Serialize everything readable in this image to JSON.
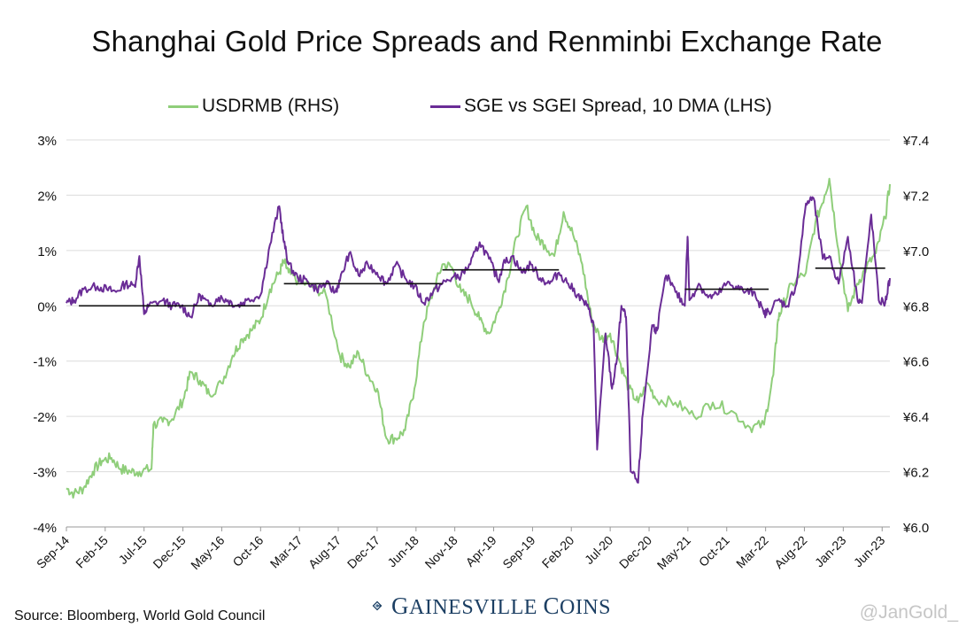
{
  "chart_data": {
    "type": "line",
    "title": "Shanghai Gold Price Spreads and Renminbi Exchange Rate",
    "legend_position": "top-center",
    "left_axis": {
      "ylim": [
        -0.04,
        0.03
      ],
      "ticks": [
        -0.04,
        -0.03,
        -0.02,
        -0.01,
        0.0,
        0.01,
        0.02,
        0.03
      ],
      "tick_labels": [
        "-4%",
        "-3%",
        "-2%",
        "-1%",
        "0%",
        "1%",
        "2%",
        "3%"
      ]
    },
    "right_axis": {
      "ylim": [
        6.0,
        7.4
      ],
      "ticks": [
        6.0,
        6.2,
        6.4,
        6.6,
        6.8,
        7.0,
        7.2,
        7.4
      ],
      "tick_labels": [
        "¥6.0",
        "¥6.2",
        "¥6.4",
        "¥6.6",
        "¥6.8",
        "¥7.0",
        "¥7.2",
        "¥7.4"
      ]
    },
    "x_axis": {
      "range": [
        2014.667,
        2023.5
      ],
      "ticks": [
        2014.667,
        2015.083,
        2015.5,
        2015.917,
        2016.333,
        2016.75,
        2017.167,
        2017.583,
        2018.0,
        2018.417,
        2018.833,
        2019.25,
        2019.667,
        2020.083,
        2020.5,
        2020.917,
        2021.333,
        2021.75,
        2022.167,
        2022.583,
        2023.0,
        2023.417
      ],
      "tick_labels": [
        "Sep-14",
        "Feb-15",
        "Jul-15",
        "Dec-15",
        "May-16",
        "Oct-16",
        "Mar-17",
        "Aug-17",
        "Dec-17",
        "Jun-18",
        "Nov-18",
        "Apr-19",
        "Sep-19",
        "Feb-20",
        "Jul-20",
        "Dec-20",
        "May-21",
        "Oct-21",
        "Mar-22",
        "Aug-22",
        "Jan-23",
        "Jun-23"
      ]
    },
    "grid": "horizontal",
    "series": [
      {
        "name": "USDRMB (RHS)",
        "axis": "right",
        "color": "#8fce7a",
        "x": [
          2014.667,
          2014.75,
          2014.85,
          2014.95,
          2015.05,
          2015.15,
          2015.25,
          2015.35,
          2015.45,
          2015.58,
          2015.6,
          2015.7,
          2015.8,
          2015.92,
          2016.0,
          2016.1,
          2016.2,
          2016.33,
          2016.45,
          2016.55,
          2016.65,
          2016.75,
          2016.85,
          2016.95,
          2017.0,
          2017.05,
          2017.15,
          2017.3,
          2017.45,
          2017.6,
          2017.7,
          2017.8,
          2017.9,
          2018.0,
          2018.1,
          2018.2,
          2018.3,
          2018.4,
          2018.5,
          2018.6,
          2018.7,
          2018.8,
          2018.9,
          2019.0,
          2019.1,
          2019.2,
          2019.3,
          2019.4,
          2019.5,
          2019.6,
          2019.7,
          2019.8,
          2019.9,
          2020.0,
          2020.1,
          2020.2,
          2020.3,
          2020.4,
          2020.5,
          2020.6,
          2020.7,
          2020.8,
          2020.9,
          2021.0,
          2021.2,
          2021.4,
          2021.6,
          2021.8,
          2022.0,
          2022.15,
          2022.25,
          2022.3,
          2022.35,
          2022.45,
          2022.6,
          2022.7,
          2022.8,
          2022.85,
          2022.95,
          2023.05,
          2023.15,
          2023.25,
          2023.35,
          2023.45,
          2023.5
        ],
        "y": [
          6.14,
          6.12,
          6.14,
          6.2,
          6.24,
          6.25,
          6.21,
          6.2,
          6.2,
          6.21,
          6.37,
          6.38,
          6.39,
          6.46,
          6.56,
          6.53,
          6.48,
          6.52,
          6.62,
          6.68,
          6.71,
          6.75,
          6.86,
          6.92,
          6.96,
          6.92,
          6.89,
          6.87,
          6.84,
          6.62,
          6.58,
          6.63,
          6.55,
          6.5,
          6.32,
          6.32,
          6.35,
          6.5,
          6.74,
          6.85,
          6.95,
          6.94,
          6.85,
          6.82,
          6.75,
          6.7,
          6.78,
          6.9,
          7.05,
          7.16,
          7.05,
          7.02,
          6.98,
          7.14,
          7.06,
          6.95,
          6.75,
          6.68,
          6.7,
          6.6,
          6.5,
          6.45,
          6.52,
          6.46,
          6.45,
          6.4,
          6.45,
          6.42,
          6.36,
          6.37,
          6.55,
          6.75,
          6.8,
          6.88,
          6.92,
          7.1,
          7.2,
          7.26,
          7.0,
          6.78,
          6.88,
          6.94,
          6.99,
          7.12,
          7.24
        ]
      },
      {
        "name": "SGE vs SGEI Spread, 10 DMA (LHS)",
        "axis": "left",
        "color": "#6a2c96",
        "x": [
          2014.667,
          2014.75,
          2014.85,
          2015.0,
          2015.1,
          2015.2,
          2015.3,
          2015.4,
          2015.45,
          2015.5,
          2015.55,
          2015.7,
          2015.8,
          2015.9,
          2016.0,
          2016.1,
          2016.2,
          2016.3,
          2016.4,
          2016.5,
          2016.6,
          2016.75,
          2016.85,
          2016.95,
          2017.0,
          2017.05,
          2017.15,
          2017.25,
          2017.35,
          2017.45,
          2017.55,
          2017.6,
          2017.7,
          2017.8,
          2017.9,
          2018.0,
          2018.1,
          2018.2,
          2018.3,
          2018.4,
          2018.5,
          2018.6,
          2018.7,
          2018.8,
          2018.9,
          2019.0,
          2019.1,
          2019.2,
          2019.3,
          2019.35,
          2019.45,
          2019.55,
          2019.65,
          2019.75,
          2019.85,
          2019.95,
          2020.05,
          2020.15,
          2020.25,
          2020.32,
          2020.36,
          2020.45,
          2020.52,
          2020.57,
          2020.62,
          2020.67,
          2020.72,
          2020.8,
          2020.85,
          2020.95,
          2021.0,
          2021.1,
          2021.2,
          2021.3,
          2021.33,
          2021.35,
          2021.45,
          2021.55,
          2021.65,
          2021.75,
          2021.85,
          2021.95,
          2022.05,
          2022.15,
          2022.2,
          2022.3,
          2022.4,
          2022.5,
          2022.6,
          2022.68,
          2022.78,
          2022.85,
          2022.95,
          2023.05,
          2023.15,
          2023.2,
          2023.3,
          2023.38,
          2023.45,
          2023.5
        ],
        "y": [
          0.0005,
          0.001,
          0.003,
          0.0035,
          0.003,
          0.0025,
          0.004,
          0.0035,
          0.009,
          -0.0015,
          0.0,
          0.001,
          0.0,
          0.0,
          -0.002,
          0.002,
          0.0,
          0.0015,
          0.001,
          0.0,
          0.001,
          0.002,
          0.011,
          0.018,
          0.0115,
          0.0075,
          0.005,
          0.0045,
          0.003,
          0.004,
          0.0025,
          0.0045,
          0.0095,
          0.0055,
          0.0075,
          0.006,
          0.004,
          0.0075,
          0.005,
          0.0035,
          0.0005,
          0.0025,
          0.004,
          0.005,
          0.0055,
          0.0075,
          0.0115,
          0.0085,
          0.0045,
          0.0075,
          0.009,
          0.006,
          0.0075,
          0.005,
          0.004,
          0.006,
          0.004,
          0.002,
          0.0,
          -0.003,
          -0.026,
          -0.005,
          -0.015,
          -0.01,
          0.0,
          -0.002,
          -0.03,
          -0.032,
          -0.0195,
          -0.0035,
          -0.0045,
          0.0055,
          0.0025,
          0.0,
          0.0125,
          0.001,
          0.004,
          0.0015,
          0.002,
          0.004,
          0.0035,
          0.0025,
          0.0025,
          -0.0015,
          -0.001,
          0.001,
          0.0,
          0.004,
          0.0185,
          0.0195,
          0.0085,
          0.009,
          0.004,
          0.0125,
          0.0015,
          0.0005,
          0.0165,
          0.001,
          0.0005,
          0.005
        ]
      }
    ],
    "reference_segments_lhs": [
      {
        "x": [
          2014.8,
          2016.75
        ],
        "y": 0.0
      },
      {
        "x": [
          2017.0,
          2018.7
        ],
        "y": 0.004
      },
      {
        "x": [
          2018.7,
          2019.95
        ],
        "y": 0.0065
      },
      {
        "x": [
          2021.3,
          2022.2
        ],
        "y": 0.003
      },
      {
        "x": [
          2022.7,
          2023.45
        ],
        "y": 0.0068
      }
    ]
  },
  "source_text": "Source: Bloomberg, World Gold Council",
  "logo_text": {
    "g": "G",
    "ainesville": "AINESVILLE",
    "c": "C",
    "oins": "OINS"
  },
  "watermark": "@JanGold_"
}
